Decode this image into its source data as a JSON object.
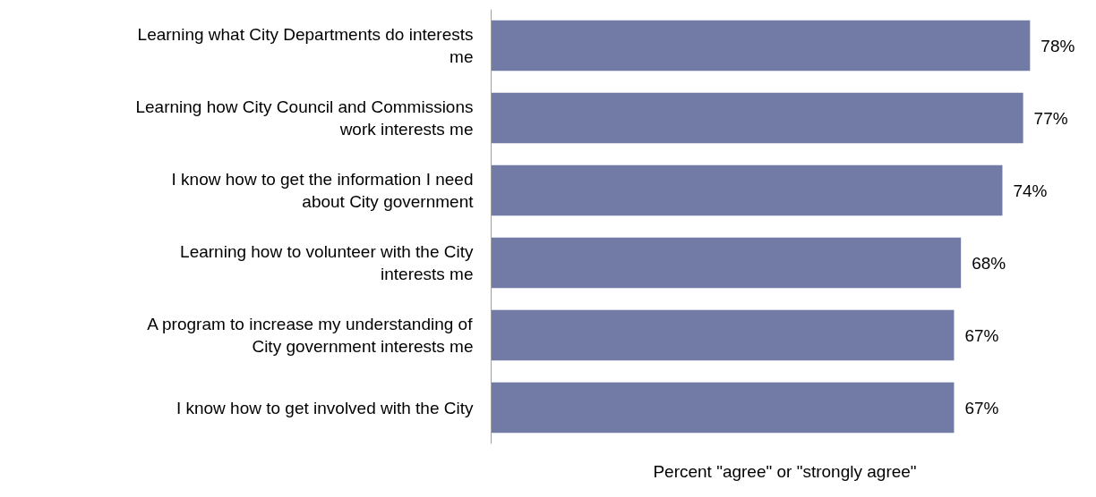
{
  "chart_data": {
    "type": "bar",
    "orientation": "horizontal",
    "categories": [
      "Learning what City Departments do interests me",
      "Learning how City Council and Commissions work interests me",
      "I know how to get the information I need about City government",
      "Learning how to volunteer with the City interests me",
      "A program to increase my understanding of City government interests me",
      "I know how to get involved with the City"
    ],
    "values": [
      78,
      77,
      74,
      68,
      67,
      67
    ],
    "value_labels": [
      "78%",
      "77%",
      "74%",
      "68%",
      "67%",
      "67%"
    ],
    "color": "#717ba6",
    "xlabel": "Percent \"agree\" or \"strongly agree\"",
    "tick_labels": "y",
    "grid": false
  }
}
